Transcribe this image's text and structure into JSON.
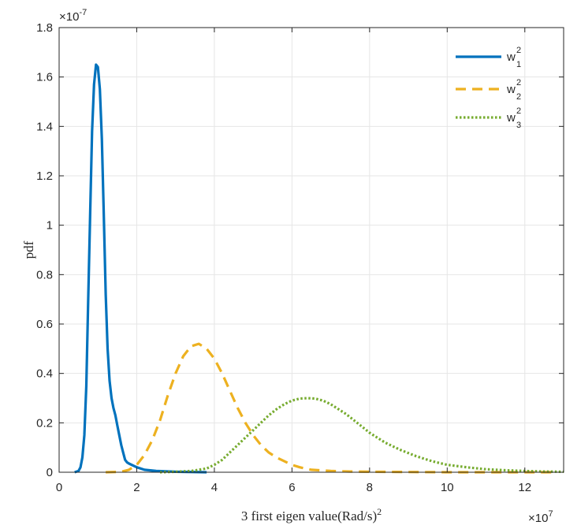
{
  "chart_data": {
    "type": "line",
    "xlabel": "3 first eigen value(Rad/s)",
    "xlabel_sup": "2",
    "ylabel": "pdf",
    "x_exponent": "×10",
    "x_exponent_power": "7",
    "y_exponent": "×10",
    "y_exponent_power": "-7",
    "xlim": [
      0,
      13
    ],
    "ylim": [
      0,
      1.8
    ],
    "xticks": [
      0,
      2,
      4,
      6,
      8,
      10,
      12
    ],
    "xtick_labels": [
      "0",
      "2",
      "4",
      "6",
      "8",
      "10",
      "12"
    ],
    "yticks": [
      0,
      0.2,
      0.4,
      0.6,
      0.8,
      1,
      1.2,
      1.4,
      1.6,
      1.8
    ],
    "ytick_labels": [
      "0",
      "0.2",
      "0.4",
      "0.6",
      "0.8",
      "1",
      "1.2",
      "1.4",
      "1.6",
      "1.8"
    ],
    "grid": true,
    "legend_position": "top-right",
    "series": [
      {
        "name": "w",
        "sup": "2",
        "sub": "1",
        "color": "#0072BD",
        "style": "solid",
        "x": [
          0.4,
          0.5,
          0.55,
          0.6,
          0.65,
          0.7,
          0.75,
          0.8,
          0.85,
          0.9,
          0.95,
          1.0,
          1.05,
          1.1,
          1.15,
          1.2,
          1.25,
          1.3,
          1.35,
          1.4,
          1.45,
          1.5,
          1.55,
          1.6,
          1.65,
          1.7,
          1.75,
          1.8,
          2.0,
          2.2,
          2.5,
          3.0,
          3.8
        ],
        "y": [
          0.0,
          0.005,
          0.02,
          0.06,
          0.15,
          0.35,
          0.7,
          1.05,
          1.38,
          1.57,
          1.65,
          1.64,
          1.55,
          1.35,
          1.05,
          0.72,
          0.5,
          0.37,
          0.3,
          0.26,
          0.23,
          0.19,
          0.15,
          0.11,
          0.08,
          0.05,
          0.04,
          0.035,
          0.02,
          0.01,
          0.005,
          0.002,
          0.0
        ]
      },
      {
        "name": "w",
        "sup": "2",
        "sub": "2",
        "color": "#EDB120",
        "style": "dashed",
        "x": [
          1.2,
          1.6,
          1.8,
          2.0,
          2.2,
          2.4,
          2.6,
          2.8,
          3.0,
          3.2,
          3.4,
          3.6,
          3.8,
          4.0,
          4.2,
          4.4,
          4.6,
          4.8,
          5.0,
          5.2,
          5.4,
          5.6,
          5.8,
          6.0,
          6.2,
          6.5,
          7.0,
          7.5,
          8.0,
          9.0,
          10.0,
          11.0,
          12.0,
          12.7
        ],
        "y": [
          0.0,
          0.002,
          0.01,
          0.03,
          0.07,
          0.13,
          0.21,
          0.31,
          0.4,
          0.47,
          0.51,
          0.52,
          0.5,
          0.46,
          0.4,
          0.33,
          0.26,
          0.2,
          0.15,
          0.11,
          0.08,
          0.06,
          0.045,
          0.03,
          0.02,
          0.01,
          0.005,
          0.003,
          0.002,
          0.001,
          0.0,
          0.0,
          0.0,
          0.0
        ]
      },
      {
        "name": "w",
        "sup": "2",
        "sub": "3",
        "color": "#77AC30",
        "style": "dotted",
        "x": [
          2.6,
          3.0,
          3.4,
          3.8,
          4.0,
          4.2,
          4.4,
          4.6,
          4.8,
          5.0,
          5.2,
          5.4,
          5.6,
          5.8,
          6.0,
          6.2,
          6.4,
          6.6,
          6.8,
          7.0,
          7.2,
          7.4,
          7.6,
          7.8,
          8.0,
          8.4,
          8.8,
          9.2,
          9.6,
          10.0,
          10.5,
          11.0,
          11.5,
          12.0,
          12.5,
          13.0
        ],
        "y": [
          0.0,
          0.002,
          0.005,
          0.015,
          0.03,
          0.05,
          0.08,
          0.11,
          0.14,
          0.17,
          0.2,
          0.23,
          0.255,
          0.275,
          0.29,
          0.298,
          0.3,
          0.298,
          0.29,
          0.275,
          0.255,
          0.235,
          0.21,
          0.185,
          0.16,
          0.12,
          0.09,
          0.065,
          0.045,
          0.03,
          0.02,
          0.012,
          0.008,
          0.005,
          0.003,
          0.002
        ]
      }
    ]
  }
}
